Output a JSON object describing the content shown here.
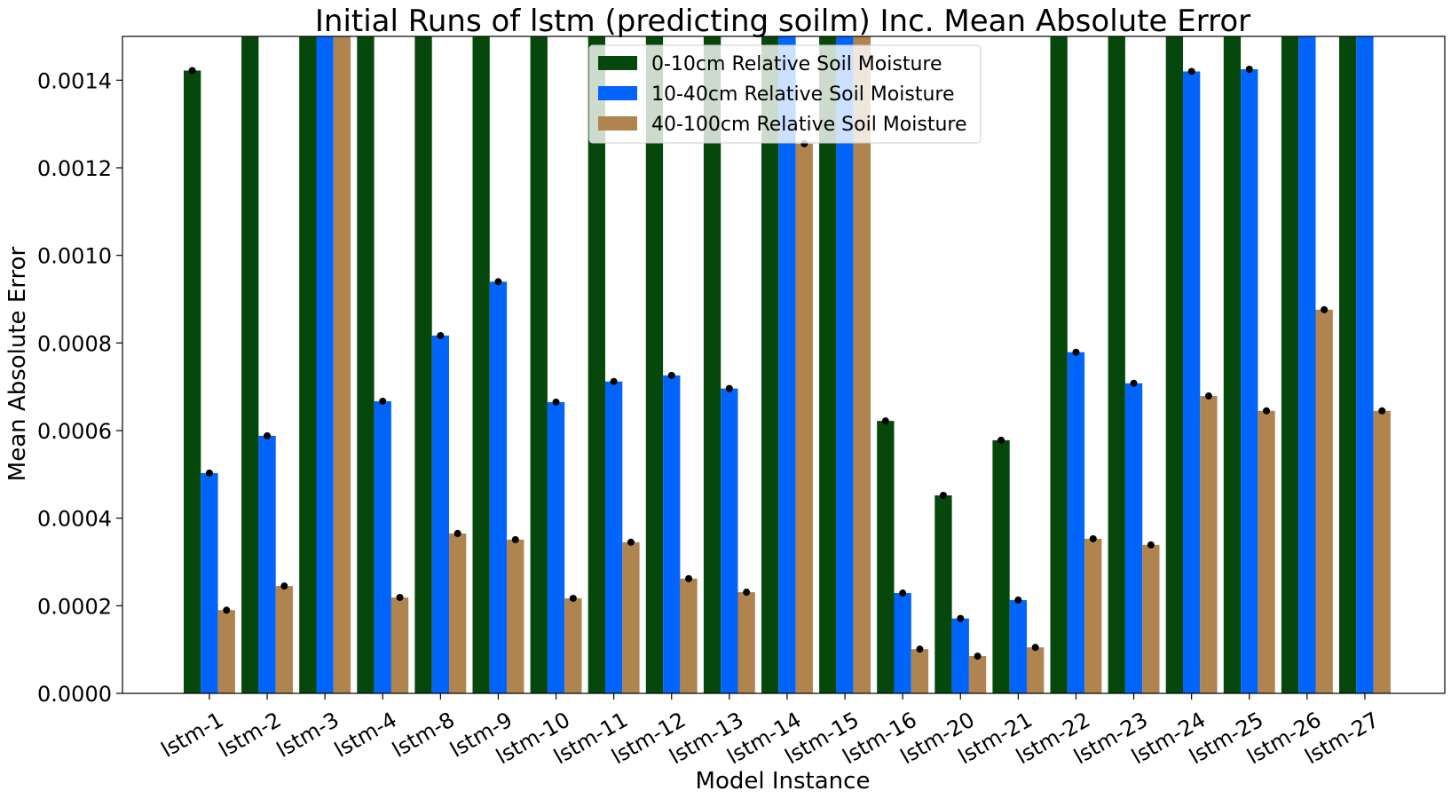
{
  "chart_data": {
    "type": "bar",
    "title": "Initial Runs of lstm (predicting soilm) Inc. Mean Absolute Error",
    "xlabel": "Model Instance",
    "ylabel": "Mean Absolute Error",
    "ylim": [
      0,
      0.0015
    ],
    "yticks": [
      "0.0000",
      "0.0002",
      "0.0004",
      "0.0006",
      "0.0008",
      "0.0010",
      "0.0012",
      "0.0014"
    ],
    "ytick_values": [
      0,
      0.0002,
      0.0004,
      0.0006,
      0.0008,
      0.001,
      0.0012,
      0.0014
    ],
    "grid": false,
    "legend_position": "top-center",
    "categories": [
      "lstm-1",
      "lstm-2",
      "lstm-3",
      "lstm-4",
      "lstm-8",
      "lstm-9",
      "lstm-10",
      "lstm-11",
      "lstm-12",
      "lstm-13",
      "lstm-14",
      "lstm-15",
      "lstm-16",
      "lstm-20",
      "lstm-21",
      "lstm-22",
      "lstm-23",
      "lstm-24",
      "lstm-25",
      "lstm-26",
      "lstm-27"
    ],
    "series": [
      {
        "name": "0-10cm Relative Soil Moisture",
        "color": "#06470c",
        "values": [
          0.001422,
          0.0015,
          0.0015,
          0.0015,
          0.0015,
          0.0015,
          0.0015,
          0.0015,
          0.0015,
          0.0015,
          0.0015,
          0.0015,
          0.000622,
          0.000452,
          0.000578,
          0.0015,
          0.0015,
          0.0015,
          0.0015,
          0.0015,
          0.0015
        ]
      },
      {
        "name": "10-40cm Relative Soil Moisture",
        "color": "#0165fc",
        "values": [
          0.000503,
          0.000588,
          0.0015,
          0.000667,
          0.000817,
          0.00094,
          0.000665,
          0.000712,
          0.000726,
          0.000696,
          0.0015,
          0.0015,
          0.000229,
          0.000171,
          0.000213,
          0.000779,
          0.000708,
          0.00142,
          0.001425,
          0.0015,
          0.0015
        ]
      },
      {
        "name": "40-100cm Relative Soil Moisture",
        "color": "#b0844f",
        "values": [
          0.00019,
          0.000245,
          0.0015,
          0.000219,
          0.000365,
          0.000351,
          0.000217,
          0.000345,
          0.000262,
          0.000231,
          0.001255,
          0.0015,
          0.000101,
          8.5e-05,
          0.000105,
          0.000353,
          0.000339,
          0.000679,
          0.000645,
          0.000876,
          0.000645
        ]
      }
    ]
  }
}
